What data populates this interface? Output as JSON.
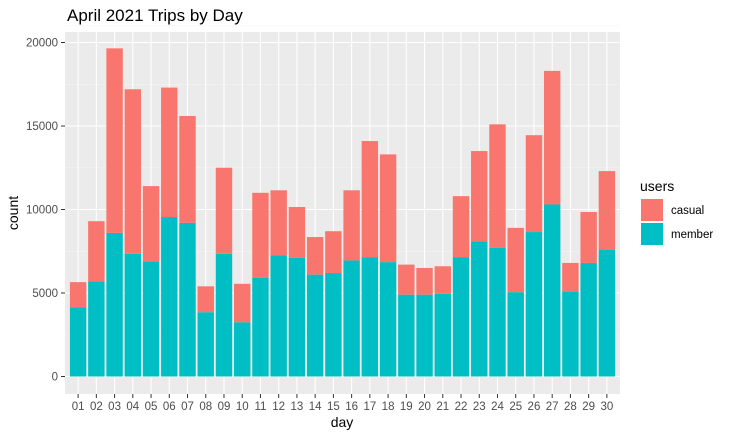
{
  "chart_data": {
    "type": "bar",
    "stacked": true,
    "title": "April 2021 Trips by Day",
    "xlabel": "day",
    "ylabel": "count",
    "ylim": [
      0,
      21000
    ],
    "yticks": [
      0,
      5000,
      10000,
      15000,
      20000
    ],
    "grid": true,
    "legend": {
      "title": "users",
      "position": "right"
    },
    "categories": [
      "01",
      "02",
      "03",
      "04",
      "05",
      "06",
      "07",
      "08",
      "09",
      "10",
      "11",
      "12",
      "13",
      "14",
      "15",
      "16",
      "17",
      "18",
      "19",
      "20",
      "21",
      "22",
      "23",
      "24",
      "25",
      "26",
      "27",
      "28",
      "29",
      "30"
    ],
    "series": [
      {
        "name": "member",
        "color": "#00BFC4",
        "values": [
          4150,
          5700,
          8600,
          7350,
          6900,
          9550,
          9200,
          3850,
          7350,
          3250,
          5900,
          7250,
          7100,
          6100,
          6200,
          6950,
          7150,
          6850,
          4900,
          4900,
          4950,
          7150,
          8100,
          7700,
          5050,
          8650,
          10300,
          5100,
          6800,
          7600
        ]
      },
      {
        "name": "casual",
        "color": "#F8766D",
        "values": [
          1500,
          3600,
          11050,
          9850,
          4500,
          7750,
          6400,
          1550,
          5150,
          2300,
          5100,
          3900,
          3050,
          2250,
          2500,
          4200,
          6950,
          6450,
          1800,
          1600,
          1650,
          3650,
          5400,
          7400,
          3850,
          5800,
          8000,
          1700,
          3050,
          4700
        ]
      }
    ]
  }
}
